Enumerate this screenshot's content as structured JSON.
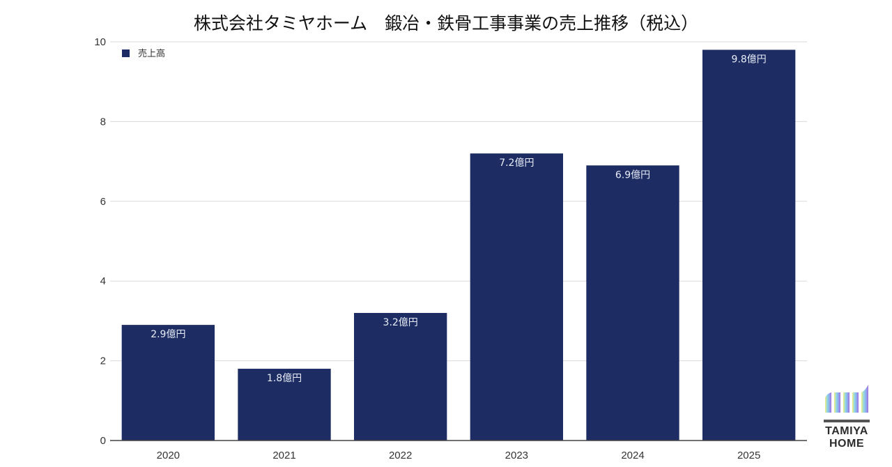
{
  "chart_data": {
    "type": "bar",
    "title": "株式会社タミヤホーム　鍛冶・鉄骨工事事業の売上推移（税込）",
    "categories": [
      "2020",
      "2021",
      "2022",
      "2023",
      "2024",
      "2025"
    ],
    "series": [
      {
        "name": "売上高",
        "values": [
          2.9,
          1.8,
          3.2,
          7.2,
          6.9,
          9.8
        ]
      }
    ],
    "data_labels": [
      "2.9億円",
      "1.8億円",
      "3.2億円",
      "7.2億円",
      "6.9億円",
      "9.8億円"
    ],
    "yticks": [
      "0",
      "2",
      "4",
      "6",
      "8",
      "10"
    ],
    "ylim": [
      0,
      10
    ],
    "xlabel": "",
    "ylabel": "",
    "grid": true,
    "legend_position": "top-left"
  },
  "colors": {
    "bar": "#1d2d63",
    "grid": "#d9d9d9",
    "axis": "#444444"
  },
  "logo": {
    "line1": "TAMIYA",
    "line2": "HOME"
  }
}
